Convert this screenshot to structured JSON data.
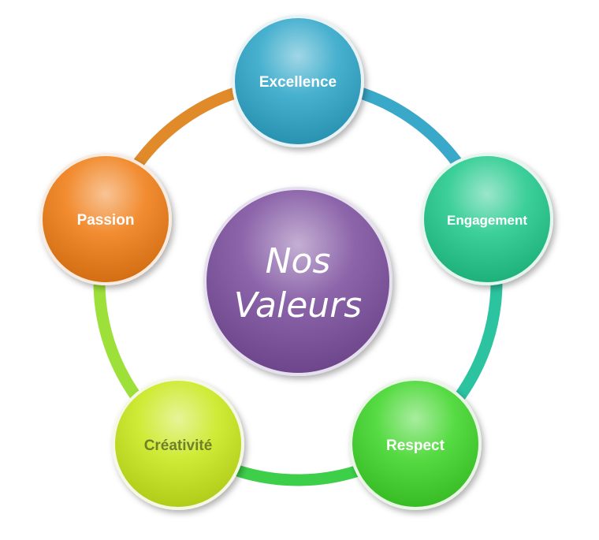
{
  "center": {
    "line1": "Nos",
    "line2": "Valeurs",
    "color": "#7b4f9e"
  },
  "values": [
    {
      "label": "Excellence",
      "color": "#2fa6c8",
      "text_color": "#ffffff"
    },
    {
      "label": "Engagement",
      "color": "#22c98c",
      "text_color": "#ffffff"
    },
    {
      "label": "Respect",
      "color": "#3fd62c",
      "text_color": "#ffffff"
    },
    {
      "label": "Créativité",
      "color": "#c9e81f",
      "text_color": "#6f7f2a"
    },
    {
      "label": "Passion",
      "color": "#f07d14",
      "text_color": "#ffffff"
    }
  ],
  "ring_colors": [
    "#3aa8c9",
    "#2cc3a0",
    "#3dcf4a",
    "#9ee03a",
    "#e08a2a"
  ]
}
